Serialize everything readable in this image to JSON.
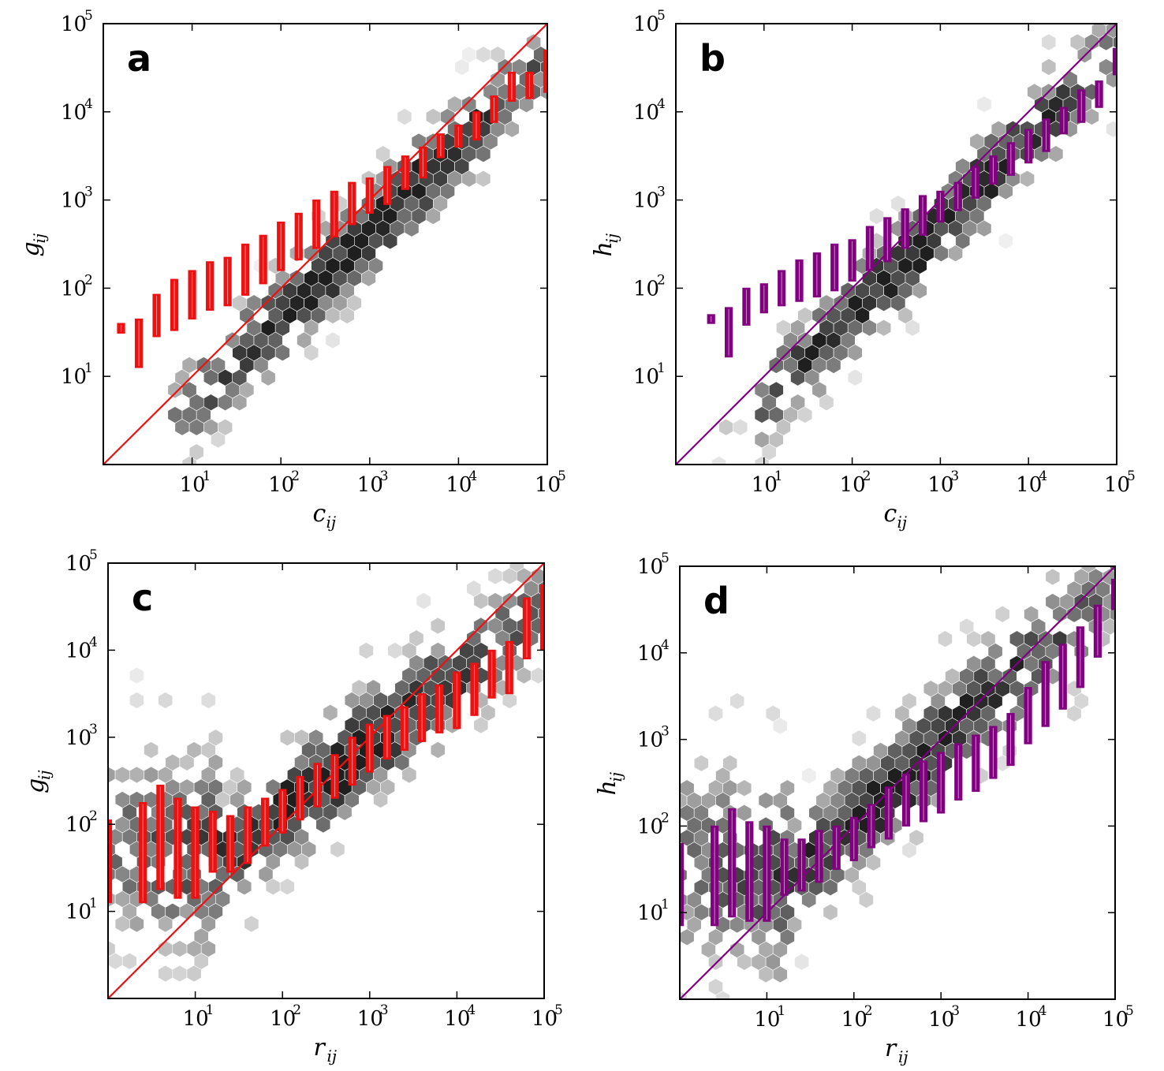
{
  "figure": {
    "description_label": "Four log-log hexbin scatter panels with binned interquartile boxes and identity lines"
  },
  "chart_data": [
    {
      "type": "scatter",
      "panel": "a",
      "xlabel": "c",
      "xlabel_sub": "ij",
      "ylabel": "g",
      "ylabel_sub": "ij",
      "xlim": [
        0,
        5
      ],
      "ylim": [
        0,
        5
      ],
      "x_ticks": [
        {
          "base": "10",
          "exp": "1",
          "value": 1
        },
        {
          "base": "10",
          "exp": "2",
          "value": 2
        },
        {
          "base": "10",
          "exp": "3",
          "value": 3
        },
        {
          "base": "10",
          "exp": "4",
          "value": 4
        },
        {
          "base": "10",
          "exp": "5",
          "value": 5
        }
      ],
      "y_ticks": [
        {
          "base": "10",
          "exp": "1",
          "value": 1
        },
        {
          "base": "10",
          "exp": "2",
          "value": 2
        },
        {
          "base": "10",
          "exp": "3",
          "value": 3
        },
        {
          "base": "10",
          "exp": "4",
          "value": 4
        },
        {
          "base": "10",
          "exp": "5",
          "value": 5
        }
      ],
      "color": "#ee1111",
      "identity_line": true,
      "cloud": {
        "x0": 0.9,
        "y0": 0.6,
        "x1": 5,
        "y1": 4.6,
        "spread": 0.38,
        "density_center": 2.9
      },
      "boxes": [
        {
          "x": 0.2,
          "q1": 1.49,
          "q3": 1.6
        },
        {
          "x": 0.4,
          "q1": 1.1,
          "q3": 1.65
        },
        {
          "x": 0.6,
          "q1": 1.45,
          "q3": 1.93
        },
        {
          "x": 0.8,
          "q1": 1.52,
          "q3": 2.1
        },
        {
          "x": 1.0,
          "q1": 1.65,
          "q3": 2.2
        },
        {
          "x": 1.2,
          "q1": 1.75,
          "q3": 2.3
        },
        {
          "x": 1.4,
          "q1": 1.8,
          "q3": 2.35
        },
        {
          "x": 1.6,
          "q1": 1.92,
          "q3": 2.5
        },
        {
          "x": 1.8,
          "q1": 2.05,
          "q3": 2.6
        },
        {
          "x": 2.0,
          "q1": 2.2,
          "q3": 2.75
        },
        {
          "x": 2.2,
          "q1": 2.32,
          "q3": 2.85
        },
        {
          "x": 2.4,
          "q1": 2.45,
          "q3": 3.0
        },
        {
          "x": 2.6,
          "q1": 2.58,
          "q3": 3.1
        },
        {
          "x": 2.8,
          "q1": 2.72,
          "q3": 3.2
        },
        {
          "x": 3.0,
          "q1": 2.85,
          "q3": 3.25
        },
        {
          "x": 3.2,
          "q1": 2.95,
          "q3": 3.38
        },
        {
          "x": 3.4,
          "q1": 3.12,
          "q3": 3.5
        },
        {
          "x": 3.6,
          "q1": 3.25,
          "q3": 3.6
        },
        {
          "x": 3.8,
          "q1": 3.48,
          "q3": 3.75
        },
        {
          "x": 4.0,
          "q1": 3.6,
          "q3": 3.85
        },
        {
          "x": 4.2,
          "q1": 3.68,
          "q3": 4.0
        },
        {
          "x": 4.4,
          "q1": 3.88,
          "q3": 4.18
        },
        {
          "x": 4.6,
          "q1": 4.12,
          "q3": 4.45
        },
        {
          "x": 4.8,
          "q1": 4.15,
          "q3": 4.45
        },
        {
          "x": 5.0,
          "q1": 4.22,
          "q3": 4.7
        }
      ]
    },
    {
      "type": "scatter",
      "panel": "b",
      "xlabel": "c",
      "xlabel_sub": "ij",
      "ylabel": "h",
      "ylabel_sub": "ij",
      "xlim": [
        0,
        5
      ],
      "ylim": [
        0,
        5
      ],
      "x_ticks": [
        {
          "base": "10",
          "exp": "1",
          "value": 1
        },
        {
          "base": "10",
          "exp": "2",
          "value": 2
        },
        {
          "base": "10",
          "exp": "3",
          "value": 3
        },
        {
          "base": "10",
          "exp": "4",
          "value": 4
        },
        {
          "base": "10",
          "exp": "5",
          "value": 5
        }
      ],
      "y_ticks": [
        {
          "base": "10",
          "exp": "1",
          "value": 1
        },
        {
          "base": "10",
          "exp": "2",
          "value": 2
        },
        {
          "base": "10",
          "exp": "3",
          "value": 3
        },
        {
          "base": "10",
          "exp": "4",
          "value": 4
        },
        {
          "base": "10",
          "exp": "5",
          "value": 5
        }
      ],
      "color": "#800080",
      "identity_line": true,
      "cloud": {
        "x0": 1.0,
        "y0": 0.7,
        "x1": 5,
        "y1": 4.7,
        "spread": 0.36,
        "density_center": 2.8
      },
      "boxes": [
        {
          "x": 0.4,
          "q1": 1.6,
          "q3": 1.7
        },
        {
          "x": 0.6,
          "q1": 1.22,
          "q3": 1.78
        },
        {
          "x": 0.8,
          "q1": 1.58,
          "q3": 2.0
        },
        {
          "x": 1.0,
          "q1": 1.72,
          "q3": 2.05
        },
        {
          "x": 1.2,
          "q1": 1.8,
          "q3": 2.2
        },
        {
          "x": 1.4,
          "q1": 1.85,
          "q3": 2.32
        },
        {
          "x": 1.6,
          "q1": 1.9,
          "q3": 2.4
        },
        {
          "x": 1.8,
          "q1": 1.97,
          "q3": 2.5
        },
        {
          "x": 2.0,
          "q1": 2.08,
          "q3": 2.55
        },
        {
          "x": 2.2,
          "q1": 2.2,
          "q3": 2.7
        },
        {
          "x": 2.4,
          "q1": 2.3,
          "q3": 2.8
        },
        {
          "x": 2.6,
          "q1": 2.45,
          "q3": 2.9
        },
        {
          "x": 2.8,
          "q1": 2.6,
          "q3": 3.05
        },
        {
          "x": 3.0,
          "q1": 2.75,
          "q3": 3.1
        },
        {
          "x": 3.2,
          "q1": 2.88,
          "q3": 3.2
        },
        {
          "x": 3.4,
          "q1": 3.02,
          "q3": 3.38
        },
        {
          "x": 3.6,
          "q1": 3.18,
          "q3": 3.5
        },
        {
          "x": 3.8,
          "q1": 3.28,
          "q3": 3.65
        },
        {
          "x": 4.0,
          "q1": 3.42,
          "q3": 3.8
        },
        {
          "x": 4.2,
          "q1": 3.55,
          "q3": 3.92
        },
        {
          "x": 4.4,
          "q1": 3.75,
          "q3": 4.05
        },
        {
          "x": 4.6,
          "q1": 3.88,
          "q3": 4.25
        },
        {
          "x": 4.8,
          "q1": 4.05,
          "q3": 4.35
        },
        {
          "x": 5.0,
          "q1": 4.42,
          "q3": 4.72
        }
      ]
    },
    {
      "type": "scatter",
      "panel": "c",
      "xlabel": "r",
      "xlabel_sub": "ij",
      "ylabel": "g",
      "ylabel_sub": "ij",
      "xlim": [
        0,
        5
      ],
      "ylim": [
        0,
        5
      ],
      "x_ticks": [
        {
          "base": "10",
          "exp": "1",
          "value": 1
        },
        {
          "base": "10",
          "exp": "2",
          "value": 2
        },
        {
          "base": "10",
          "exp": "3",
          "value": 3
        },
        {
          "base": "10",
          "exp": "4",
          "value": 4
        },
        {
          "base": "10",
          "exp": "5",
          "value": 5
        }
      ],
      "y_ticks": [
        {
          "base": "10",
          "exp": "1",
          "value": 1
        },
        {
          "base": "10",
          "exp": "2",
          "value": 2
        },
        {
          "base": "10",
          "exp": "3",
          "value": 3
        },
        {
          "base": "10",
          "exp": "4",
          "value": 4
        },
        {
          "base": "10",
          "exp": "5",
          "value": 5
        }
      ],
      "color": "#ee1111",
      "identity_line": true,
      "cloud": {
        "x0": 0.0,
        "y0": 1.6,
        "x1": 5,
        "y1": 4.5,
        "spread": 0.45,
        "density_center": 2.6,
        "curve": true
      },
      "boxes": [
        {
          "x": 0.0,
          "q1": 1.1,
          "q3": 2.05
        },
        {
          "x": 0.4,
          "q1": 1.1,
          "q3": 2.25
        },
        {
          "x": 0.6,
          "q1": 1.25,
          "q3": 2.45
        },
        {
          "x": 0.8,
          "q1": 1.15,
          "q3": 2.3
        },
        {
          "x": 1.0,
          "q1": 1.15,
          "q3": 2.2
        },
        {
          "x": 1.2,
          "q1": 1.45,
          "q3": 2.15
        },
        {
          "x": 1.4,
          "q1": 1.45,
          "q3": 2.1
        },
        {
          "x": 1.6,
          "q1": 1.55,
          "q3": 2.2
        },
        {
          "x": 1.8,
          "q1": 1.75,
          "q3": 2.3
        },
        {
          "x": 2.0,
          "q1": 1.9,
          "q3": 2.4
        },
        {
          "x": 2.2,
          "q1": 2.05,
          "q3": 2.55
        },
        {
          "x": 2.4,
          "q1": 2.2,
          "q3": 2.7
        },
        {
          "x": 2.6,
          "q1": 2.3,
          "q3": 2.8
        },
        {
          "x": 2.8,
          "q1": 2.45,
          "q3": 3.0
        },
        {
          "x": 3.0,
          "q1": 2.6,
          "q3": 3.15
        },
        {
          "x": 3.2,
          "q1": 2.75,
          "q3": 3.25
        },
        {
          "x": 3.4,
          "q1": 2.85,
          "q3": 3.35
        },
        {
          "x": 3.6,
          "q1": 2.95,
          "q3": 3.5
        },
        {
          "x": 3.8,
          "q1": 3.05,
          "q3": 3.6
        },
        {
          "x": 4.0,
          "q1": 3.1,
          "q3": 3.75
        },
        {
          "x": 4.2,
          "q1": 3.25,
          "q3": 3.85
        },
        {
          "x": 4.4,
          "q1": 3.45,
          "q3": 4.0
        },
        {
          "x": 4.6,
          "q1": 3.5,
          "q3": 4.1
        },
        {
          "x": 4.8,
          "q1": 3.9,
          "q3": 4.6
        },
        {
          "x": 5.0,
          "q1": 4.0,
          "q3": 4.75
        }
      ]
    },
    {
      "type": "scatter",
      "panel": "d",
      "xlabel": "r",
      "xlabel_sub": "ij",
      "ylabel": "h",
      "ylabel_sub": "ij",
      "xlim": [
        0,
        5
      ],
      "ylim": [
        0,
        5
      ],
      "x_ticks": [
        {
          "base": "10",
          "exp": "1",
          "value": 1
        },
        {
          "base": "10",
          "exp": "2",
          "value": 2
        },
        {
          "base": "10",
          "exp": "3",
          "value": 3
        },
        {
          "base": "10",
          "exp": "4",
          "value": 4
        },
        {
          "base": "10",
          "exp": "5",
          "value": 5
        }
      ],
      "y_ticks": [
        {
          "base": "10",
          "exp": "1",
          "value": 1
        },
        {
          "base": "10",
          "exp": "2",
          "value": 2
        },
        {
          "base": "10",
          "exp": "3",
          "value": 3
        },
        {
          "base": "10",
          "exp": "4",
          "value": 4
        },
        {
          "base": "10",
          "exp": "5",
          "value": 5
        }
      ],
      "color": "#800080",
      "identity_line": true,
      "cloud": {
        "x0": 0.0,
        "y0": 1.4,
        "x1": 5,
        "y1": 4.8,
        "spread": 0.45,
        "density_center": 2.5,
        "curve": true
      },
      "boxes": [
        {
          "x": 0.0,
          "q1": 0.85,
          "q3": 1.8
        },
        {
          "x": 0.4,
          "q1": 0.85,
          "q3": 2.0
        },
        {
          "x": 0.6,
          "q1": 0.95,
          "q3": 2.2
        },
        {
          "x": 0.8,
          "q1": 0.9,
          "q3": 2.05
        },
        {
          "x": 1.0,
          "q1": 0.9,
          "q3": 2.0
        },
        {
          "x": 1.2,
          "q1": 1.2,
          "q3": 1.85
        },
        {
          "x": 1.4,
          "q1": 1.25,
          "q3": 1.85
        },
        {
          "x": 1.6,
          "q1": 1.35,
          "q3": 1.95
        },
        {
          "x": 1.8,
          "q1": 1.5,
          "q3": 2.0
        },
        {
          "x": 2.0,
          "q1": 1.6,
          "q3": 2.1
        },
        {
          "x": 2.2,
          "q1": 1.75,
          "q3": 2.25
        },
        {
          "x": 2.4,
          "q1": 1.85,
          "q3": 2.45
        },
        {
          "x": 2.6,
          "q1": 2.0,
          "q3": 2.6
        },
        {
          "x": 2.8,
          "q1": 2.05,
          "q3": 2.75
        },
        {
          "x": 3.0,
          "q1": 2.15,
          "q3": 2.85
        },
        {
          "x": 3.2,
          "q1": 2.3,
          "q3": 2.95
        },
        {
          "x": 3.4,
          "q1": 2.4,
          "q3": 3.05
        },
        {
          "x": 3.6,
          "q1": 2.55,
          "q3": 3.15
        },
        {
          "x": 3.8,
          "q1": 2.7,
          "q3": 3.3
        },
        {
          "x": 4.0,
          "q1": 2.95,
          "q3": 3.6
        },
        {
          "x": 4.2,
          "q1": 3.15,
          "q3": 3.9
        },
        {
          "x": 4.4,
          "q1": 3.35,
          "q3": 4.1
        },
        {
          "x": 4.6,
          "q1": 3.6,
          "q3": 4.3
        },
        {
          "x": 4.8,
          "q1": 3.95,
          "q3": 4.55
        },
        {
          "x": 5.0,
          "q1": 4.5,
          "q3": 4.85
        }
      ]
    }
  ]
}
